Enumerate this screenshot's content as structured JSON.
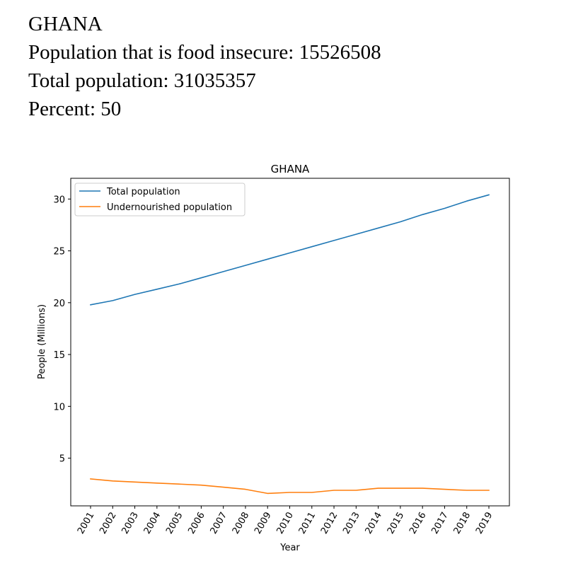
{
  "header": {
    "country": "GHANA",
    "food_insecure_line": "Population that is food insecure: 15526508",
    "total_population_line": "Total population: 31035357",
    "percent_line": "Percent: 50"
  },
  "colors": {
    "total": "#1f77b4",
    "undernourished": "#ff7f0e"
  },
  "chart_data": {
    "type": "line",
    "title": "GHANA",
    "xlabel": "Year",
    "ylabel": "People (Millions)",
    "x": [
      "2001",
      "2002",
      "2003",
      "2004",
      "2005",
      "2006",
      "2007",
      "2008",
      "2009",
      "2010",
      "2011",
      "2012",
      "2013",
      "2014",
      "2015",
      "2016",
      "2017",
      "2018",
      "2019"
    ],
    "series": [
      {
        "name": "Total population",
        "values": [
          19.8,
          20.2,
          20.8,
          21.3,
          21.8,
          22.4,
          23.0,
          23.6,
          24.2,
          24.8,
          25.4,
          26.0,
          26.6,
          27.2,
          27.8,
          28.5,
          29.1,
          29.8,
          30.4
        ]
      },
      {
        "name": "Undernourished population",
        "values": [
          3.0,
          2.8,
          2.7,
          2.6,
          2.5,
          2.4,
          2.2,
          2.0,
          1.6,
          1.7,
          1.7,
          1.9,
          1.9,
          2.1,
          2.1,
          2.1,
          2.0,
          1.9,
          1.9
        ]
      }
    ],
    "ylim": [
      0.4,
      32.0
    ],
    "yticks": [
      "5",
      "10",
      "15",
      "20",
      "25",
      "30"
    ],
    "grid": false,
    "legend": "upper-left"
  }
}
